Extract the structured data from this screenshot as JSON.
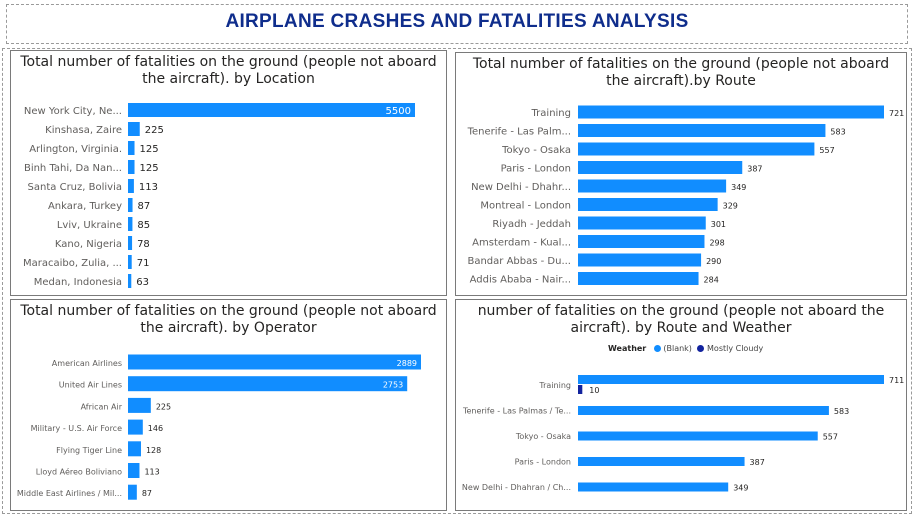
{
  "page": {
    "title": "AIRPLANE CRASHES AND FATALITIES ANALYSIS",
    "accent_color": "#118DFF",
    "dark_series_color": "#12239E",
    "title_color": "#0f2d8c"
  },
  "chart_data": [
    {
      "id": "location",
      "type": "bar",
      "orientation": "horizontal",
      "title": "Total number of fatalities on the ground (people not aboard the aircraft). by Location",
      "categories": [
        "New York City, Ne...",
        "Kinshasa, Zaire",
        "Arlington, Virginia.",
        "Binh Tahi, Da Nan...",
        "Santa Cruz, Bolivia",
        "Ankara, Turkey",
        "Lviv, Ukraine",
        "Kano, Nigeria",
        "Maracaibo, Zulia, ...",
        "Medan, Indonesia"
      ],
      "values": [
        5500,
        225,
        125,
        125,
        113,
        87,
        85,
        78,
        71,
        63
      ],
      "xlim": [
        0,
        5500
      ],
      "grid": false
    },
    {
      "id": "route",
      "type": "bar",
      "orientation": "horizontal",
      "title": "Total number of fatalities on the ground (people not aboard the aircraft).by Route",
      "categories": [
        "Training",
        "Tenerife - Las Palm...",
        "Tokyo - Osaka",
        "Paris - London",
        "New Delhi - Dhahr...",
        "Montreal - London",
        "Riyadh - Jeddah",
        "Amsterdam - Kual...",
        "Bandar Abbas - Du...",
        "Addis Ababa - Nair..."
      ],
      "values": [
        721,
        583,
        557,
        387,
        349,
        329,
        301,
        298,
        290,
        284
      ],
      "xlim": [
        0,
        721
      ],
      "grid": false
    },
    {
      "id": "operator",
      "type": "bar",
      "orientation": "horizontal",
      "title": "Total number of fatalities on the ground (people not aboard the aircraft). by Operator",
      "categories": [
        "American Airlines",
        "United Air Lines",
        "African Air",
        "Military - U.S. Air Force",
        "Flying Tiger Line",
        "Lloyd Aéreo Boliviano",
        "Middle East Airlines / Mil..."
      ],
      "values": [
        2889,
        2753,
        225,
        146,
        128,
        113,
        87
      ],
      "xlim": [
        0,
        2889
      ],
      "grid": false
    },
    {
      "id": "route_weather",
      "type": "bar",
      "orientation": "horizontal",
      "title": "number of fatalities on the ground (people not aboard the aircraft). by Route and Weather",
      "legend_title": "Weather",
      "legend_position": "top-left",
      "categories": [
        "Training",
        "Tenerife - Las Palmas / Te...",
        "Tokyo - Osaka",
        "Paris - London",
        "New Delhi - Dhahran / Ch..."
      ],
      "series": [
        {
          "name": "(Blank)",
          "color": "#118DFF",
          "values": [
            711,
            583,
            557,
            387,
            349
          ]
        },
        {
          "name": "Mostly Cloudy",
          "color": "#12239E",
          "values": [
            10,
            null,
            null,
            null,
            null
          ]
        }
      ],
      "xlim": [
        0,
        711
      ],
      "grid": false
    }
  ]
}
